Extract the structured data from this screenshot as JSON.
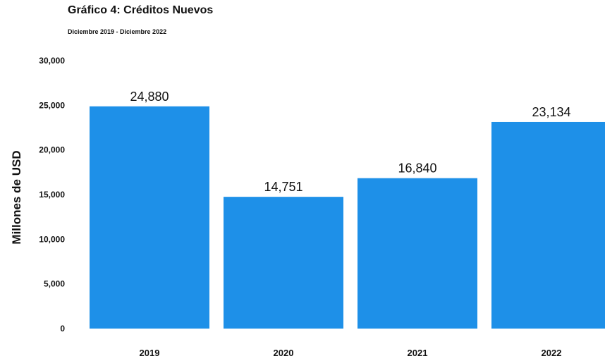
{
  "chart_data": {
    "type": "bar",
    "title": "Gráfico 4:  Créditos Nuevos",
    "subtitle": "Diciembre 2019  -  Diciembre 2022",
    "xlabel": "",
    "ylabel": "Millones de USD",
    "categories": [
      "2019",
      "2020",
      "2021",
      "2022"
    ],
    "values": [
      24880,
      14751,
      16840,
      23134
    ],
    "value_labels": [
      "24,880",
      "14,751",
      "16,840",
      "23,134"
    ],
    "ylim": [
      0,
      30000
    ],
    "yticks": [
      0,
      5000,
      10000,
      15000,
      20000,
      25000,
      30000
    ],
    "ytick_labels": [
      "0",
      "5,000",
      "10,000",
      "15,000",
      "20,000",
      "25,000",
      "30,000"
    ],
    "grid": false,
    "legend": "none",
    "bar_color": "#1e90e8"
  }
}
